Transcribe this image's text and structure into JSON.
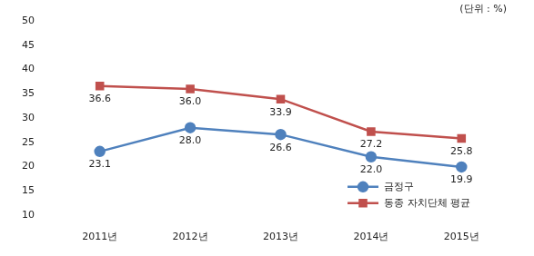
{
  "chart_data": {
    "type": "line",
    "annotation": "(단위 : %)",
    "categories": [
      "2011년",
      "2012년",
      "2013년",
      "2014년",
      "2015년"
    ],
    "series": [
      {
        "name": "금정구",
        "color": "#4f81bd",
        "marker": "circle",
        "values": [
          23.1,
          28.0,
          26.6,
          22.0,
          19.9
        ],
        "value_labels": [
          "23.1",
          "28.0",
          "26.6",
          "22.0",
          "19.9"
        ]
      },
      {
        "name": "동종 자치단체 평균",
        "color": "#c0504d",
        "marker": "square",
        "values": [
          36.6,
          36.0,
          33.9,
          27.2,
          25.8
        ],
        "value_labels": [
          "36.6",
          "36.0",
          "33.9",
          "27.2",
          "25.8"
        ]
      }
    ],
    "ylim": [
      10,
      50
    ],
    "yticks": [
      10,
      15,
      20,
      25,
      30,
      35,
      40,
      45,
      50
    ],
    "grid": false,
    "data_labels": true,
    "legend": "lower right"
  }
}
